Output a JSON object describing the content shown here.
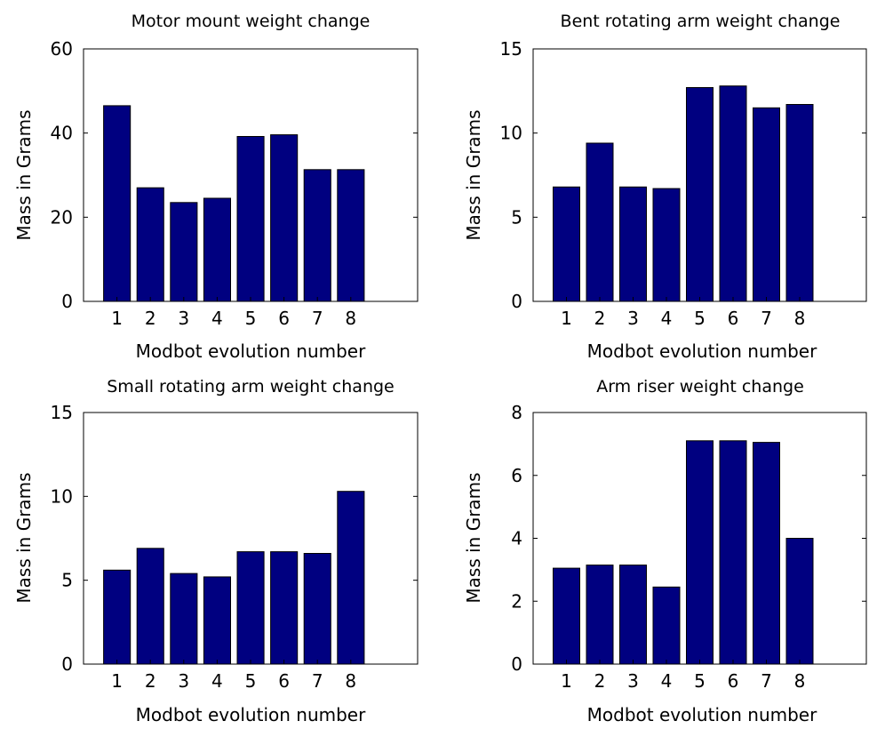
{
  "chart_data": [
    {
      "type": "bar",
      "title": "Motor mount weight change",
      "xlabel": "Modbot evolution number",
      "ylabel": "Mass in Grams",
      "categories": [
        "1",
        "2",
        "3",
        "4",
        "5",
        "6",
        "7",
        "8"
      ],
      "values": [
        46.5,
        27,
        23.5,
        24.5,
        39.2,
        39.6,
        31.3,
        31.3
      ],
      "ylim": [
        0,
        60
      ],
      "yticks": [
        "0",
        "20",
        "40",
        "60"
      ],
      "xlim": [
        0,
        10
      ],
      "grid": false,
      "bar_color": "#000080"
    },
    {
      "type": "bar",
      "title": "Bent rotating arm weight change",
      "xlabel": "Modbot evolution number",
      "ylabel": "Mass in Grams",
      "categories": [
        "1",
        "2",
        "3",
        "4",
        "5",
        "6",
        "7",
        "8"
      ],
      "values": [
        6.8,
        9.4,
        6.8,
        6.7,
        12.7,
        12.8,
        11.5,
        11.7
      ],
      "ylim": [
        0,
        15
      ],
      "yticks": [
        "0",
        "5",
        "10",
        "15"
      ],
      "xlim": [
        0,
        10
      ],
      "grid": false,
      "bar_color": "#000080"
    },
    {
      "type": "bar",
      "title": "Small rotating arm weight change",
      "xlabel": "Modbot evolution number",
      "ylabel": "Mass in Grams",
      "categories": [
        "1",
        "2",
        "3",
        "4",
        "5",
        "6",
        "7",
        "8"
      ],
      "values": [
        5.6,
        6.9,
        5.4,
        5.2,
        6.7,
        6.7,
        6.6,
        10.3
      ],
      "ylim": [
        0,
        15
      ],
      "yticks": [
        "0",
        "5",
        "10",
        "15"
      ],
      "xlim": [
        0,
        10
      ],
      "grid": false,
      "bar_color": "#000080"
    },
    {
      "type": "bar",
      "title": "Arm riser weight change",
      "xlabel": "Modbot evolution number",
      "ylabel": "Mass in Grams",
      "categories": [
        "1",
        "2",
        "3",
        "4",
        "5",
        "6",
        "7",
        "8"
      ],
      "values": [
        3.05,
        3.15,
        3.15,
        2.45,
        7.1,
        7.1,
        7.05,
        4.0
      ],
      "ylim": [
        0,
        8
      ],
      "yticks": [
        "0",
        "2",
        "4",
        "6",
        "8"
      ],
      "xlim": [
        0,
        10
      ],
      "grid": false,
      "bar_color": "#000080"
    }
  ]
}
